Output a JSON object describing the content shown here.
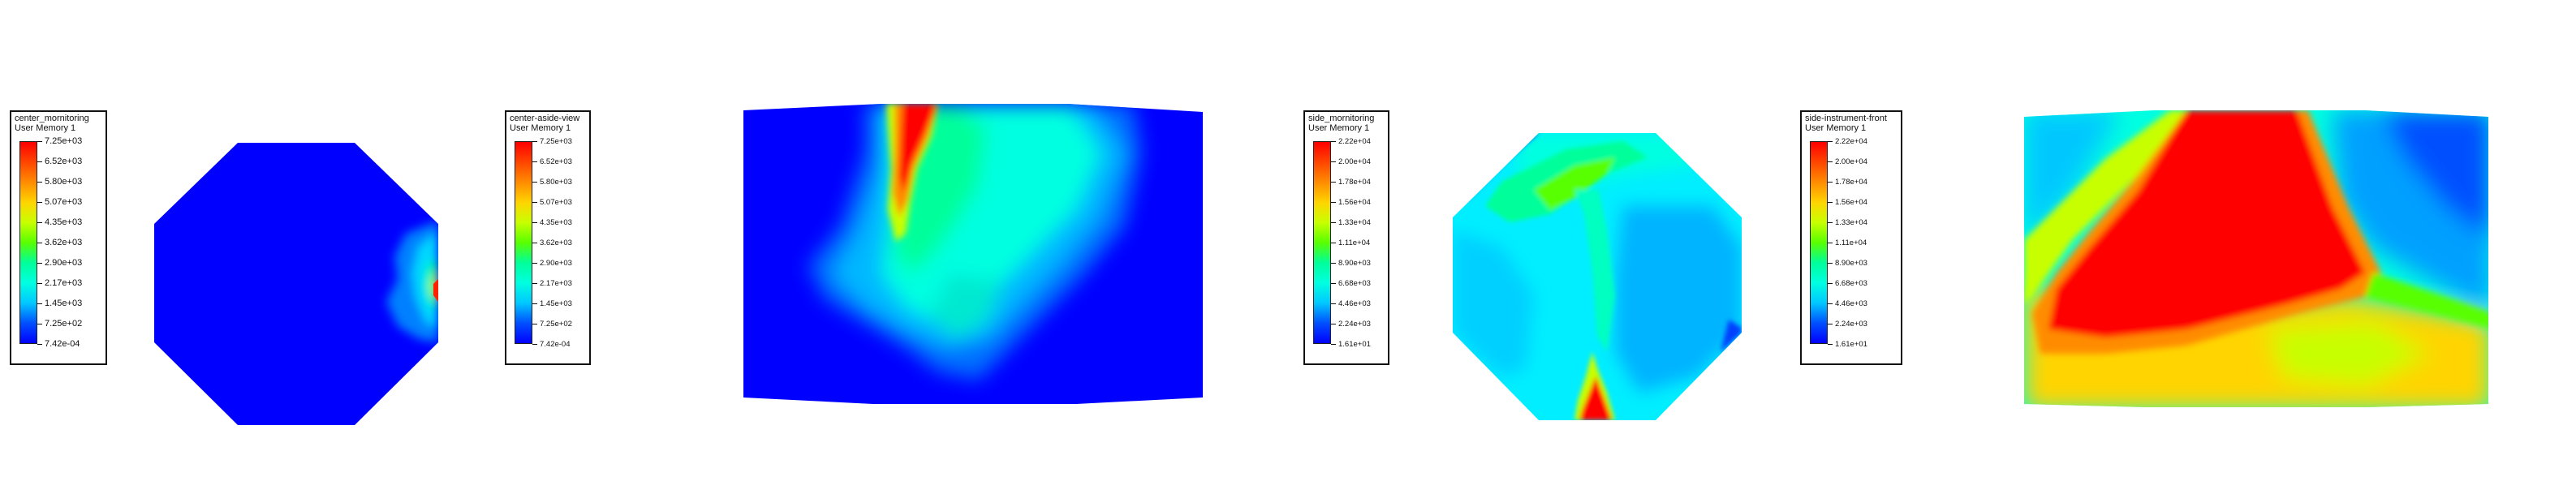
{
  "colors": {
    "scale": [
      "#0000ff",
      "#0050ff",
      "#00c8ff",
      "#00ffe0",
      "#00ff9a",
      "#59ff00",
      "#c8ff00",
      "#ffd400",
      "#ff8c00",
      "#ff4500",
      "#ff0000"
    ],
    "background": "#ffffff",
    "legend_border": "#111111"
  },
  "chart_data": [
    {
      "type": "heatmap",
      "title": "center_mornitoring",
      "subtitle": "User Memory 1",
      "legend_ticks": [
        "7.25e+03",
        "6.52e+03",
        "5.80e+03",
        "5.07e+03",
        "4.35e+03",
        "3.62e+03",
        "2.90e+03",
        "2.17e+03",
        "1.45e+03",
        "7.25e+02",
        "7.42e-04"
      ],
      "range": [
        0.000742,
        7250
      ],
      "shape": "octagon"
    },
    {
      "type": "heatmap",
      "title": "center-aside-view",
      "subtitle": "User Memory 1",
      "legend_ticks": [
        "7.25e+03",
        "6.52e+03",
        "5.80e+03",
        "5.07e+03",
        "4.35e+03",
        "3.62e+03",
        "2.90e+03",
        "2.17e+03",
        "1.45e+03",
        "7.25e+02",
        "7.42e-04"
      ],
      "range": [
        0.000742,
        7250
      ],
      "shape": "rectangle"
    },
    {
      "type": "heatmap",
      "title": "side_mornitoring",
      "subtitle": "User Memory 1",
      "legend_ticks": [
        "2.22e+04",
        "2.00e+04",
        "1.78e+04",
        "1.56e+04",
        "1.33e+04",
        "1.11e+04",
        "8.90e+03",
        "6.68e+03",
        "4.46e+03",
        "2.24e+03",
        "1.61e+01"
      ],
      "range": [
        16.1,
        22200
      ],
      "shape": "octagon"
    },
    {
      "type": "heatmap",
      "title": "side-instrument-front",
      "subtitle": "User Memory 1",
      "legend_ticks": [
        "2.22e+04",
        "2.00e+04",
        "1.78e+04",
        "1.56e+04",
        "1.33e+04",
        "1.11e+04",
        "8.90e+03",
        "6.68e+03",
        "4.46e+03",
        "2.24e+03",
        "1.61e+01"
      ],
      "range": [
        16.1,
        22200
      ],
      "shape": "rectangle"
    }
  ]
}
